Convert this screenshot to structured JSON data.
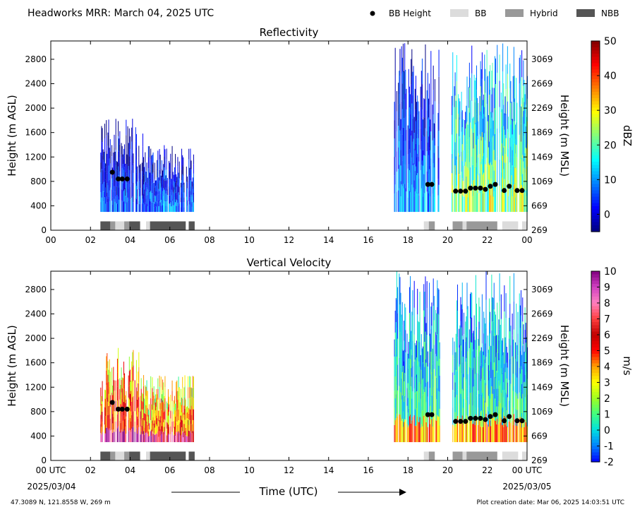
{
  "header": {
    "title": "Headworks MRR:  March 04, 2025 UTC",
    "legend": [
      {
        "label": "BB Height",
        "kind": "dot",
        "color": "#000000"
      },
      {
        "label": "BB",
        "kind": "box",
        "color": "#dcdcdc"
      },
      {
        "label": "Hybrid",
        "kind": "box",
        "color": "#999999"
      },
      {
        "label": "NBB",
        "kind": "box",
        "color": "#555555"
      }
    ]
  },
  "chart_data": [
    {
      "type": "heatmap",
      "title": "Reflectivity",
      "ylabel": "Height (m AGL)",
      "y2label": "Height (m MSL)",
      "ylim": [
        0,
        3100
      ],
      "xlim": [
        0,
        24
      ],
      "yticks": [
        0,
        400,
        800,
        1200,
        1600,
        2000,
        2400,
        2800
      ],
      "y2ticks": [
        "3069",
        "2669",
        "2269",
        "1869",
        "1469",
        "1069",
        "669",
        "269"
      ],
      "xticks": [
        "00",
        "02",
        "04",
        "06",
        "08",
        "10",
        "12",
        "14",
        "16",
        "18",
        "20",
        "22",
        "00"
      ],
      "colorbar": {
        "label": "dBZ",
        "range": [
          -5,
          50
        ],
        "ticks": [
          "50",
          "40",
          "30",
          "20",
          "10",
          "0"
        ],
        "tick_values": [
          50,
          40,
          30,
          20,
          10,
          0
        ],
        "colors": [
          "#000080",
          "#0000ff",
          "#0080ff",
          "#00ffff",
          "#80ff80",
          "#ffff00",
          "#ff8000",
          "#ff0000",
          "#800000"
        ]
      },
      "bb_height": {
        "hours": [
          3.1,
          3.4,
          3.6,
          3.85,
          19.0,
          19.2,
          20.4,
          20.65,
          20.9,
          21.15,
          21.4,
          21.65,
          21.9,
          22.15,
          22.4,
          22.85,
          23.1,
          23.5,
          23.75
        ],
        "heights": [
          950,
          840,
          840,
          840,
          750,
          750,
          640,
          640,
          640,
          690,
          690,
          690,
          670,
          720,
          750,
          650,
          720,
          650,
          650
        ]
      },
      "bb_class": [
        {
          "start": 2.5,
          "end": 3.0,
          "class": "NBB"
        },
        {
          "start": 3.0,
          "end": 3.25,
          "class": "Hybrid"
        },
        {
          "start": 3.25,
          "end": 3.7,
          "class": "BB"
        },
        {
          "start": 3.7,
          "end": 3.95,
          "class": "Hybrid"
        },
        {
          "start": 3.95,
          "end": 4.5,
          "class": "NBB"
        },
        {
          "start": 4.8,
          "end": 5.0,
          "class": "BB"
        },
        {
          "start": 5.0,
          "end": 6.8,
          "class": "NBB"
        },
        {
          "start": 6.95,
          "end": 7.25,
          "class": "NBB"
        },
        {
          "start": 18.8,
          "end": 19.05,
          "class": "BB"
        },
        {
          "start": 19.05,
          "end": 19.35,
          "class": "Hybrid"
        },
        {
          "start": 20.25,
          "end": 20.75,
          "class": "Hybrid"
        },
        {
          "start": 20.75,
          "end": 20.95,
          "class": "BB"
        },
        {
          "start": 20.95,
          "end": 22.5,
          "class": "Hybrid"
        },
        {
          "start": 22.75,
          "end": 23.55,
          "class": "BB"
        },
        {
          "start": 23.75,
          "end": 24.0,
          "class": "BB"
        }
      ],
      "echo_segments": [
        {
          "start": 2.5,
          "end": 4.7,
          "top": 1850,
          "core": 6,
          "spread": 7
        },
        {
          "start": 4.7,
          "end": 7.2,
          "top": 1400,
          "core": 8,
          "spread": 7
        },
        {
          "start": 17.3,
          "end": 19.6,
          "top": 3100,
          "core": 10,
          "spread": 7
        },
        {
          "start": 20.2,
          "end": 24.0,
          "top": 3100,
          "core": 24,
          "spread": 10
        }
      ]
    },
    {
      "type": "heatmap",
      "title": "Vertical Velocity",
      "ylabel": "Height (m AGL)",
      "y2label": "Height (m MSL)",
      "ylim": [
        0,
        3100
      ],
      "xlim": [
        0,
        24
      ],
      "yticks": [
        0,
        400,
        800,
        1200,
        1600,
        2000,
        2400,
        2800
      ],
      "y2ticks": [
        "3069",
        "2669",
        "2269",
        "1869",
        "1469",
        "1069",
        "669",
        "269"
      ],
      "xticks": [
        "00 UTC",
        "02",
        "04",
        "06",
        "08",
        "10",
        "12",
        "14",
        "16",
        "18",
        "20",
        "22",
        "00 UTC"
      ],
      "xdates": [
        "2025/03/04",
        "2025/03/05"
      ],
      "xlabel": "Time (UTC)",
      "colorbar": {
        "label": "m/s",
        "range": [
          -2,
          10
        ],
        "ticks": [
          "10",
          "9",
          "8",
          "7",
          "6",
          "5",
          "4",
          "3",
          "2",
          "1",
          "0",
          "-1",
          "-2"
        ],
        "tick_values": [
          10,
          9,
          8,
          7,
          6,
          5,
          4,
          3,
          2,
          1,
          0,
          -1,
          -2
        ],
        "colors": [
          "#0000ff",
          "#0080ff",
          "#00e0e0",
          "#40ff80",
          "#a0ff20",
          "#ffff00",
          "#ffa000",
          "#ff0000",
          "#c00000",
          "#ff4040",
          "#ff80c0",
          "#d040c0",
          "#800080"
        ]
      },
      "bb_height": {
        "hours": [
          3.1,
          3.4,
          3.6,
          3.85,
          19.0,
          19.2,
          20.4,
          20.65,
          20.9,
          21.15,
          21.4,
          21.65,
          21.9,
          22.15,
          22.4,
          22.85,
          23.1,
          23.5,
          23.75
        ],
        "heights": [
          950,
          840,
          840,
          840,
          750,
          750,
          640,
          640,
          640,
          690,
          690,
          690,
          670,
          720,
          750,
          650,
          720,
          650,
          650
        ]
      },
      "bb_class": [
        {
          "start": 2.5,
          "end": 3.0,
          "class": "NBB"
        },
        {
          "start": 3.0,
          "end": 3.25,
          "class": "Hybrid"
        },
        {
          "start": 3.25,
          "end": 3.7,
          "class": "BB"
        },
        {
          "start": 3.7,
          "end": 3.95,
          "class": "Hybrid"
        },
        {
          "start": 3.95,
          "end": 4.5,
          "class": "NBB"
        },
        {
          "start": 4.8,
          "end": 5.0,
          "class": "BB"
        },
        {
          "start": 5.0,
          "end": 6.8,
          "class": "NBB"
        },
        {
          "start": 6.95,
          "end": 7.25,
          "class": "NBB"
        },
        {
          "start": 18.8,
          "end": 19.05,
          "class": "BB"
        },
        {
          "start": 19.05,
          "end": 19.35,
          "class": "Hybrid"
        },
        {
          "start": 20.25,
          "end": 20.75,
          "class": "Hybrid"
        },
        {
          "start": 20.75,
          "end": 20.95,
          "class": "BB"
        },
        {
          "start": 20.95,
          "end": 22.5,
          "class": "Hybrid"
        },
        {
          "start": 22.75,
          "end": 23.55,
          "class": "BB"
        },
        {
          "start": 23.75,
          "end": 24.0,
          "class": "BB"
        }
      ],
      "echo_segments": [
        {
          "start": 2.5,
          "end": 4.7,
          "top": 1850,
          "core": 6,
          "spread": 2
        },
        {
          "start": 4.7,
          "end": 7.2,
          "top": 1400,
          "core": 5,
          "spread": 2
        },
        {
          "start": 17.3,
          "end": 19.6,
          "top": 3100,
          "core": 1,
          "spread": 1.5
        },
        {
          "start": 20.2,
          "end": 24.0,
          "top": 3100,
          "core": 1,
          "spread": 1.5
        }
      ]
    }
  ],
  "footer": {
    "location": "47.3089 N, 121.8558 W, 269 m",
    "created": "Plot creation date: Mar 06, 2025 14:03:51 UTC"
  }
}
